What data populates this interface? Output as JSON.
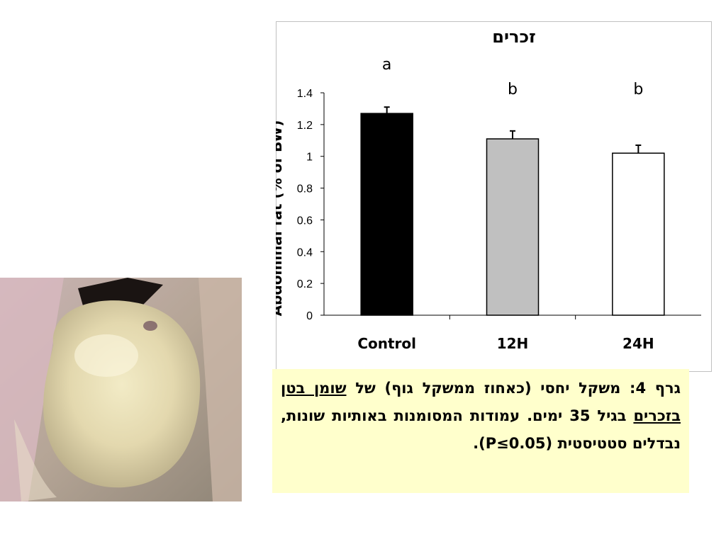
{
  "chart_data": {
    "type": "bar",
    "title": "זכרים",
    "ylabel": "Abdominal fat (% of BW)",
    "xlabel": "",
    "categories": [
      "Control",
      "12H",
      "24H"
    ],
    "values": [
      1.27,
      1.11,
      1.02
    ],
    "errors": [
      0.04,
      0.05,
      0.05
    ],
    "significance_letters": [
      "a",
      "b",
      "b"
    ],
    "bar_colors": [
      "#000000",
      "#c0c0c0",
      "#ffffff"
    ],
    "ylim": [
      0,
      1.4
    ],
    "yticks": [
      0,
      0.2,
      0.4,
      0.6,
      0.8,
      1,
      1.2,
      1.4
    ],
    "ytick_labels": [
      "0",
      "0.2",
      "0.4",
      "0.6",
      "0.8",
      "1",
      "1.2",
      "1.4"
    ],
    "grid": false,
    "legend": "none"
  },
  "caption": {
    "part1": "גרף 4: משקל יחסי (כאחוז ממשקל גוף) של ",
    "underlined": "שומן בטן בזכרים",
    "part2": " בגיל 35 ימים. עמודות המסומנות באותיות שונות, נבדלים סטטיסטית (P≤0.05)."
  },
  "photo": {
    "subject": "abdominal fat pad photograph"
  }
}
